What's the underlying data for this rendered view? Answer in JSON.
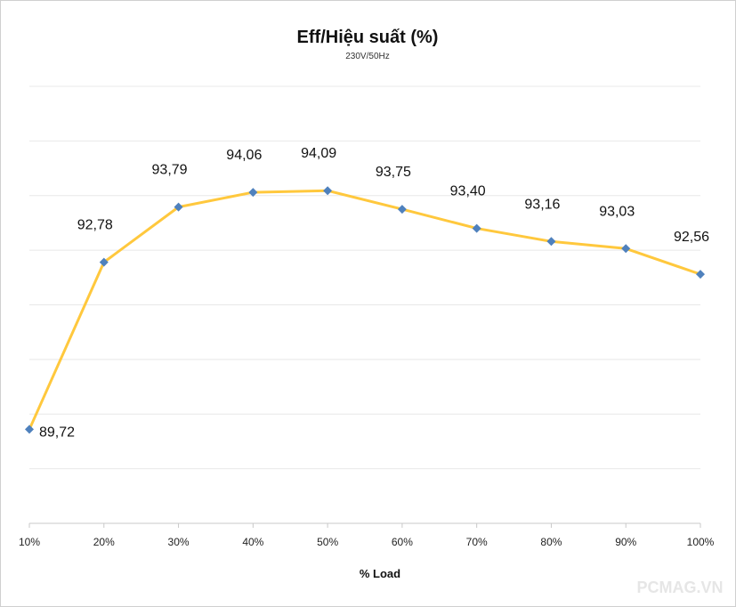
{
  "chart_data": {
    "type": "line",
    "title": "Eff/Hiệu suất (%)",
    "subtitle": "230V/50Hz",
    "xlabel": "% Load",
    "ylabel": "",
    "categories": [
      "10%",
      "20%",
      "30%",
      "40%",
      "50%",
      "60%",
      "70%",
      "80%",
      "90%",
      "100%"
    ],
    "series": [
      {
        "values": [
          89.72,
          92.78,
          93.79,
          94.06,
          94.09,
          93.75,
          93.4,
          93.16,
          93.03,
          92.56
        ],
        "labels": [
          "89,72",
          "92,78",
          "93,79",
          "94,06",
          "94,09",
          "93,75",
          "93,40",
          "93,16",
          "93,03",
          "92,56"
        ],
        "line_color": "#FFC83D",
        "marker_color": "#4F81BD",
        "marker": "diamond"
      }
    ],
    "ylim": [
      88.0,
      96.0
    ],
    "y_gridlines": 8,
    "grid": "horizontal",
    "legend": "none"
  },
  "watermark": "PCMAG.VN"
}
